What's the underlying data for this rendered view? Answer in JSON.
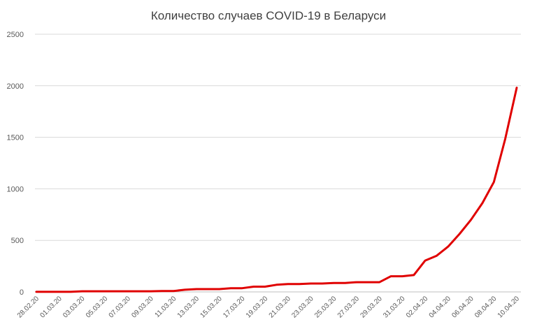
{
  "chart_data": {
    "type": "line",
    "title": "Количество случаев COVID-19 в Беларуси",
    "xlabel": "",
    "ylabel": "",
    "ylim": [
      0,
      2500
    ],
    "yticks": [
      0,
      500,
      1000,
      1500,
      2000,
      2500
    ],
    "grid": true,
    "legend": "none",
    "line_color": "#e00000",
    "x": [
      "28.02.20",
      "29.02.20",
      "01.03.20",
      "02.03.20",
      "03.03.20",
      "04.03.20",
      "05.03.20",
      "06.03.20",
      "07.03.20",
      "08.03.20",
      "09.03.20",
      "10.03.20",
      "11.03.20",
      "12.03.20",
      "13.03.20",
      "14.03.20",
      "15.03.20",
      "16.03.20",
      "17.03.20",
      "18.03.20",
      "19.03.20",
      "20.03.20",
      "21.03.20",
      "22.03.20",
      "23.03.20",
      "24.03.20",
      "25.03.20",
      "26.03.20",
      "27.03.20",
      "28.03.20",
      "29.03.20",
      "30.03.20",
      "31.03.20",
      "01.04.20",
      "02.04.20",
      "03.04.20",
      "04.04.20",
      "05.04.20",
      "06.04.20",
      "07.04.20",
      "08.04.20",
      "09.04.20",
      "10.04.20"
    ],
    "xtick_labels": [
      "28.02.20",
      "01.03.20",
      "03.03.20",
      "05.03.20",
      "07.03.20",
      "09.03.20",
      "11.03.20",
      "13.03.20",
      "15.03.20",
      "17.03.20",
      "19.03.20",
      "21.03.20",
      "23.03.20",
      "25.03.20",
      "27.03.20",
      "29.03.20",
      "31.03.20",
      "02.04.20",
      "04.04.20",
      "06.04.20",
      "08.04.20",
      "10.04.20"
    ],
    "series": [
      {
        "values": [
          1,
          1,
          1,
          1,
          6,
          6,
          6,
          6,
          6,
          6,
          6,
          9,
          9,
          21,
          27,
          27,
          27,
          36,
          36,
          51,
          51,
          69,
          76,
          76,
          81,
          81,
          86,
          86,
          94,
          94,
          94,
          152,
          152,
          163,
          304,
          351,
          440,
          562,
          700,
          861,
          1066,
          1486,
          1981
        ]
      }
    ]
  }
}
